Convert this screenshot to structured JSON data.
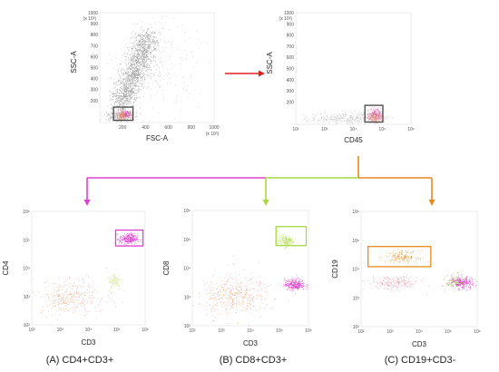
{
  "chart_data": [
    {
      "id": "top-left",
      "type": "scatter",
      "xlabel": "FSC-A",
      "ylabel": "SSC-A",
      "x_multiplier": "(x 10³)",
      "y_multiplier": "(x 10³)",
      "xscale": "linear",
      "yscale": "linear",
      "xlim": [
        0,
        1000
      ],
      "ylim": [
        0,
        1000
      ],
      "xticks": [
        "200",
        "400",
        "600",
        "800",
        "1000"
      ],
      "yticks": [
        "200",
        "300",
        "400",
        "500",
        "600",
        "700",
        "800",
        "900",
        "1000"
      ],
      "gate": {
        "x": [
          120,
          290
        ],
        "y": [
          20,
          140
        ],
        "color": "#444444"
      },
      "populations": [
        {
          "color": "#8a8a8a",
          "shape": "diagonal",
          "from": [
            180,
            150
          ],
          "to": [
            430,
            800
          ],
          "spread": 55,
          "count": 1500
        },
        {
          "color": "#a0a0a0",
          "shape": "cloud",
          "center": [
            160,
            60
          ],
          "spread": [
            60,
            25
          ],
          "count": 220
        },
        {
          "color": "#b0b0b0",
          "shape": "cloud",
          "center": [
            500,
            500
          ],
          "spread": [
            180,
            200
          ],
          "count": 250
        },
        {
          "color": "#e05080",
          "shape": "cloud",
          "center": [
            210,
            75
          ],
          "spread": [
            35,
            20
          ],
          "count": 120
        },
        {
          "color": "#e8a060",
          "shape": "cloud",
          "center": [
            190,
            65
          ],
          "spread": [
            30,
            18
          ],
          "count": 90
        },
        {
          "color": "#cc44cc",
          "shape": "cloud",
          "center": [
            230,
            80
          ],
          "spread": [
            25,
            15
          ],
          "count": 50
        }
      ]
    },
    {
      "id": "top-right",
      "type": "scatter",
      "xlabel": "CD45",
      "ylabel": "SSC-A",
      "y_multiplier": "(x 10³)",
      "xscale": "log",
      "yscale": "linear",
      "xlim": [
        1,
        100000
      ],
      "ylim": [
        0,
        1000
      ],
      "xticks": [
        "10²",
        "10³",
        "10⁴",
        "10⁵",
        "10⁶"
      ],
      "yticks": [
        "200",
        "300",
        "400",
        "500",
        "600",
        "700",
        "800",
        "900",
        "1000"
      ],
      "gate": {
        "x": [
          1000,
          6000
        ],
        "y": [
          20,
          170
        ],
        "color": "#444444"
      },
      "populations": [
        {
          "color": "#a8a8a8",
          "shape": "cloud",
          "center": [
            2.2,
            60
          ],
          "spread": [
            0.8,
            25
          ],
          "count": 260
        },
        {
          "color": "#e05080",
          "shape": "cloud",
          "center": [
            3.4,
            80
          ],
          "spread": [
            0.18,
            30
          ],
          "count": 140
        },
        {
          "color": "#e8a060",
          "shape": "cloud",
          "center": [
            3.45,
            70
          ],
          "spread": [
            0.15,
            25
          ],
          "count": 100
        },
        {
          "color": "#cc44cc",
          "shape": "cloud",
          "center": [
            3.5,
            90
          ],
          "spread": [
            0.12,
            25
          ],
          "count": 60
        }
      ]
    },
    {
      "id": "panel-a",
      "type": "scatter",
      "xlabel": "CD3",
      "ylabel": "CD4",
      "caption": "(A) CD4+CD3+",
      "xscale": "log",
      "yscale": "log",
      "xlim": [
        1,
        100000
      ],
      "ylim": [
        1,
        100000
      ],
      "xticks": [
        "10²",
        "10³",
        "10⁴",
        "10⁵",
        "10⁶"
      ],
      "yticks": [
        "10²",
        "10³",
        "10⁴",
        "10⁵",
        "10⁶"
      ],
      "gate": {
        "x": [
          5000,
          80000
        ],
        "y": [
          3000,
          15000
        ],
        "color": "#e040d0"
      },
      "populations": [
        {
          "color": "#dd22cc",
          "shape": "cloud",
          "center": [
            4.25,
            3.8
          ],
          "spread": [
            0.2,
            0.12
          ],
          "count": 260
        },
        {
          "color": "#c8e07a",
          "shape": "cloud",
          "center": [
            3.65,
            1.95
          ],
          "spread": [
            0.15,
            0.2
          ],
          "count": 100
        },
        {
          "color": "#e8a060",
          "shape": "cloud",
          "center": [
            1.45,
            1.2
          ],
          "spread": [
            0.55,
            0.35
          ],
          "count": 180
        },
        {
          "color": "#e87a90",
          "shape": "cloud",
          "center": [
            2.0,
            1.3
          ],
          "spread": [
            0.8,
            0.45
          ],
          "count": 120
        }
      ]
    },
    {
      "id": "panel-b",
      "type": "scatter",
      "xlabel": "CD3",
      "ylabel": "CD8",
      "caption": "(B) CD8+CD3+",
      "xscale": "log",
      "yscale": "log",
      "xlim": [
        1,
        100000
      ],
      "ylim": [
        1,
        100000
      ],
      "xticks": [
        "10²",
        "10³",
        "10⁴",
        "10⁵",
        "10⁶"
      ],
      "yticks": [
        "10²",
        "10³",
        "10⁴",
        "10⁵",
        "10⁶"
      ],
      "gate": {
        "x": [
          4000,
          80000
        ],
        "y": [
          3000,
          20000
        ],
        "color": "#a8d840"
      },
      "populations": [
        {
          "color": "#a8d840",
          "shape": "cloud",
          "center": [
            4.0,
            3.7
          ],
          "spread": [
            0.17,
            0.12
          ],
          "count": 160
        },
        {
          "color": "#dd22cc",
          "shape": "cloud",
          "center": [
            4.4,
            1.8
          ],
          "spread": [
            0.22,
            0.12
          ],
          "count": 280
        },
        {
          "color": "#e8a060",
          "shape": "cloud",
          "center": [
            1.6,
            1.2
          ],
          "spread": [
            0.55,
            0.35
          ],
          "count": 230
        },
        {
          "color": "#e87a90",
          "shape": "cloud",
          "center": [
            2.1,
            1.4
          ],
          "spread": [
            0.9,
            0.5
          ],
          "count": 170
        }
      ]
    },
    {
      "id": "panel-c",
      "type": "scatter",
      "xlabel": "CD3",
      "ylabel": "CD19",
      "caption": "(C) CD19+CD3-",
      "xscale": "log",
      "yscale": "log",
      "xlim": [
        1,
        100000
      ],
      "ylim": [
        1,
        100000
      ],
      "xticks": [
        "10²",
        "10³",
        "10⁴",
        "10⁵",
        "10⁶"
      ],
      "yticks": [
        "10²",
        "10³",
        "10⁴",
        "10⁵",
        "10⁶"
      ],
      "gate": {
        "x": [
          2,
          1000
        ],
        "y": [
          400,
          3000
        ],
        "color": "#e88a20"
      },
      "populations": [
        {
          "color": "#e88a20",
          "shape": "cloud",
          "center": [
            1.75,
            3.05
          ],
          "spread": [
            0.35,
            0.13
          ],
          "count": 180
        },
        {
          "color": "#e87a90",
          "shape": "cloud",
          "center": [
            1.4,
            1.9
          ],
          "spread": [
            0.55,
            0.15
          ],
          "count": 180
        },
        {
          "color": "#9a8a3a",
          "shape": "cloud",
          "center": [
            4.1,
            1.95
          ],
          "spread": [
            0.22,
            0.15
          ],
          "count": 150
        },
        {
          "color": "#dd22cc",
          "shape": "cloud",
          "center": [
            4.4,
            1.9
          ],
          "spread": [
            0.22,
            0.13
          ],
          "count": 180
        }
      ]
    }
  ],
  "arrows": {
    "top_arrow_color": "#e02020",
    "branch_colors": [
      "#e040d0",
      "#a8d840",
      "#e88a20"
    ],
    "trunk_color": "#e88a20"
  }
}
